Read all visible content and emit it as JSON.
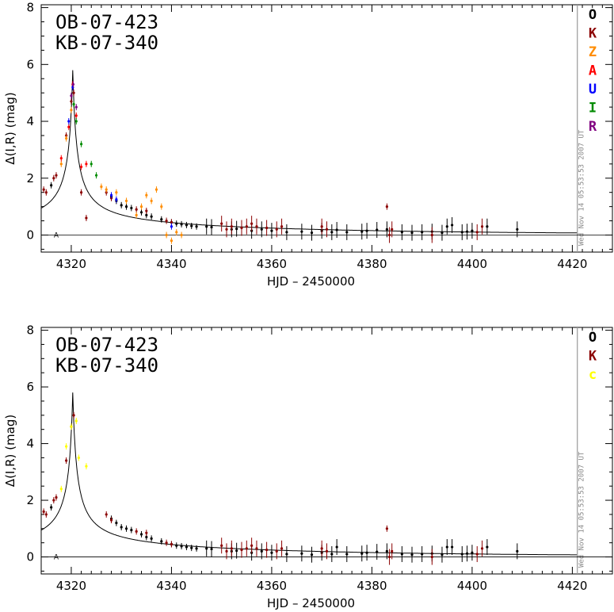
{
  "chart_data": [
    {
      "type": "scatter",
      "title_lines": [
        "OB-07-423",
        "KB-07-340"
      ],
      "xlabel": "HJD – 2450000",
      "ylabel": "Δ(I,R) (mag)",
      "xlim": [
        4314,
        4428
      ],
      "ylim": [
        -0.6,
        8.1
      ],
      "xticks": [
        4320,
        4340,
        4360,
        4380,
        4400,
        4420
      ],
      "yticks": [
        0,
        2,
        4,
        6,
        8
      ],
      "stamp": "Wed Nov 14 05:53:53 2007 UT",
      "marker_label": "A",
      "marker": {
        "x": 4317,
        "y": 0.0
      },
      "vline_x": 4421,
      "legend_position": "top-right",
      "legend": [
        {
          "label": "O",
          "color": "#000000"
        },
        {
          "label": "K",
          "color": "#8b0000"
        },
        {
          "label": "Z",
          "color": "#ff8c00"
        },
        {
          "label": "A",
          "color": "#ff0000"
        },
        {
          "label": "U",
          "color": "#0000ff"
        },
        {
          "label": "I",
          "color": "#008b00"
        },
        {
          "label": "R",
          "color": "#800080"
        }
      ],
      "model": {
        "t0": 4320.3,
        "peak": 5.45,
        "t_rise": 0.85,
        "baseline": 0.0
      },
      "series": [
        {
          "name": "O",
          "color": "#000000",
          "points": [
            [
              4316,
              1.75
            ],
            [
              4328,
              1.35
            ],
            [
              4329,
              1.2
            ],
            [
              4330,
              1.05
            ],
            [
              4331,
              1.0
            ],
            [
              4332,
              0.95
            ],
            [
              4334,
              0.8
            ],
            [
              4335,
              0.7
            ],
            [
              4336,
              0.65
            ],
            [
              4338,
              0.55
            ],
            [
              4340,
              0.45
            ],
            [
              4341,
              0.4
            ],
            [
              4342,
              0.38
            ],
            [
              4343,
              0.35
            ],
            [
              4344,
              0.32
            ],
            [
              4345,
              0.3
            ],
            [
              4347,
              0.3
            ],
            [
              4348,
              0.28
            ],
            [
              4352,
              0.2
            ],
            [
              4353,
              0.22
            ],
            [
              4356,
              0.15
            ],
            [
              4358,
              0.2
            ],
            [
              4360,
              0.15
            ],
            [
              4363,
              0.1
            ],
            [
              4366,
              0.12
            ],
            [
              4368,
              0.08
            ],
            [
              4370,
              0.15
            ],
            [
              4372,
              0.1
            ],
            [
              4373,
              0.18
            ],
            [
              4375,
              0.1
            ],
            [
              4378,
              0.12
            ],
            [
              4379,
              0.15
            ],
            [
              4381,
              0.18
            ],
            [
              4383,
              0.2
            ],
            [
              4386,
              0.1
            ],
            [
              4388,
              0.08
            ],
            [
              4390,
              0.1
            ],
            [
              4392,
              0.12
            ],
            [
              4394,
              0.08
            ],
            [
              4395,
              0.3
            ],
            [
              4396,
              0.35
            ],
            [
              4398,
              0.1
            ],
            [
              4399,
              0.12
            ],
            [
              4400,
              0.15
            ],
            [
              4403,
              0.3
            ],
            [
              4409,
              0.2
            ]
          ]
        },
        {
          "name": "K",
          "color": "#8b0000",
          "points": [
            [
              4314.5,
              1.6
            ],
            [
              4315,
              1.5
            ],
            [
              4316.5,
              2.0
            ],
            [
              4317,
              2.1
            ],
            [
              4319,
              3.5
            ],
            [
              4320,
              4.7
            ],
            [
              4320.5,
              5.0
            ],
            [
              4322,
              1.5
            ],
            [
              4323,
              0.6
            ],
            [
              4327,
              1.5
            ],
            [
              4328,
              1.3
            ],
            [
              4333,
              0.9
            ],
            [
              4335,
              0.85
            ],
            [
              4339,
              0.5
            ],
            [
              4340,
              0.45
            ],
            [
              4350,
              0.4
            ],
            [
              4351,
              0.2
            ],
            [
              4352,
              0.3
            ],
            [
              4354,
              0.25
            ],
            [
              4355,
              0.3
            ],
            [
              4356,
              0.4
            ],
            [
              4357,
              0.3
            ],
            [
              4359,
              0.25
            ],
            [
              4361,
              0.2
            ],
            [
              4362,
              0.3
            ],
            [
              4370,
              0.3
            ],
            [
              4371,
              0.2
            ],
            [
              4383,
              1.0
            ],
            [
              4383.5,
              0.0
            ],
            [
              4384,
              0.2
            ],
            [
              4392,
              0.0
            ],
            [
              4401,
              0.1
            ],
            [
              4402,
              0.3
            ]
          ]
        },
        {
          "name": "Z",
          "color": "#ff8c00",
          "points": [
            [
              4318,
              2.5
            ],
            [
              4319,
              3.4
            ],
            [
              4320,
              4.4
            ],
            [
              4326,
              1.7
            ],
            [
              4327,
              1.6
            ],
            [
              4329,
              1.5
            ],
            [
              4331,
              1.2
            ],
            [
              4333,
              0.7
            ],
            [
              4334,
              1.0
            ],
            [
              4335,
              1.4
            ],
            [
              4336,
              1.2
            ],
            [
              4337,
              1.6
            ],
            [
              4338,
              1.0
            ],
            [
              4339,
              0.0
            ],
            [
              4340,
              -0.2
            ],
            [
              4341,
              0.1
            ],
            [
              4342,
              0.0
            ]
          ]
        },
        {
          "name": "A",
          "color": "#ff0000",
          "points": [
            [
              4318,
              2.7
            ],
            [
              4319.5,
              3.8
            ],
            [
              4320.3,
              5.3
            ],
            [
              4321,
              4.2
            ],
            [
              4322,
              2.4
            ],
            [
              4323,
              2.5
            ]
          ]
        },
        {
          "name": "U",
          "color": "#0000ff",
          "points": [
            [
              4319.5,
              4.0
            ],
            [
              4320.3,
              5.2
            ],
            [
              4328,
              1.4
            ],
            [
              4329,
              1.25
            ],
            [
              4340,
              0.3
            ]
          ]
        },
        {
          "name": "I",
          "color": "#008b00",
          "points": [
            [
              4320.5,
              4.6
            ],
            [
              4321,
              4.0
            ],
            [
              4322,
              3.2
            ],
            [
              4324,
              2.5
            ],
            [
              4325,
              2.1
            ]
          ]
        },
        {
          "name": "R",
          "color": "#800080",
          "points": [
            [
              4320,
              4.9
            ],
            [
              4320.4,
              5.3
            ],
            [
              4321,
              4.5
            ]
          ]
        }
      ]
    },
    {
      "type": "scatter",
      "title_lines": [
        "OB-07-423",
        "KB-07-340"
      ],
      "xlabel": "HJD – 2450000",
      "ylabel": "Δ(I,R) (mag)",
      "xlim": [
        4314,
        4428
      ],
      "ylim": [
        -0.6,
        8.1
      ],
      "xticks": [
        4320,
        4340,
        4360,
        4380,
        4400,
        4420
      ],
      "yticks": [
        0,
        2,
        4,
        6,
        8
      ],
      "stamp": "Wed Nov 14 05:53:53 2007 UT",
      "marker_label": "A",
      "marker": {
        "x": 4317,
        "y": 0.0
      },
      "vline_x": 4421,
      "legend_position": "top-right",
      "legend": [
        {
          "label": "O",
          "color": "#000000"
        },
        {
          "label": "K",
          "color": "#8b0000"
        },
        {
          "label": "c",
          "color": "#ffff00"
        }
      ],
      "model": {
        "t0": 4320.3,
        "peak": 5.45,
        "t_rise": 0.85,
        "baseline": 0.0
      },
      "series": [
        {
          "name": "O",
          "color": "#000000",
          "points": [
            [
              4316,
              1.75
            ],
            [
              4328,
              1.35
            ],
            [
              4329,
              1.2
            ],
            [
              4330,
              1.05
            ],
            [
              4331,
              1.0
            ],
            [
              4332,
              0.95
            ],
            [
              4334,
              0.8
            ],
            [
              4335,
              0.7
            ],
            [
              4336,
              0.65
            ],
            [
              4338,
              0.55
            ],
            [
              4340,
              0.45
            ],
            [
              4341,
              0.4
            ],
            [
              4342,
              0.38
            ],
            [
              4343,
              0.35
            ],
            [
              4344,
              0.32
            ],
            [
              4345,
              0.3
            ],
            [
              4347,
              0.3
            ],
            [
              4348,
              0.28
            ],
            [
              4352,
              0.2
            ],
            [
              4353,
              0.22
            ],
            [
              4356,
              0.15
            ],
            [
              4358,
              0.2
            ],
            [
              4360,
              0.15
            ],
            [
              4363,
              0.1
            ],
            [
              4366,
              0.12
            ],
            [
              4368,
              0.08
            ],
            [
              4370,
              0.15
            ],
            [
              4372,
              0.1
            ],
            [
              4373,
              0.35
            ],
            [
              4375,
              0.1
            ],
            [
              4378,
              0.12
            ],
            [
              4379,
              0.15
            ],
            [
              4381,
              0.18
            ],
            [
              4383,
              0.2
            ],
            [
              4386,
              0.1
            ],
            [
              4388,
              0.08
            ],
            [
              4390,
              0.1
            ],
            [
              4392,
              0.12
            ],
            [
              4394,
              0.08
            ],
            [
              4395,
              0.35
            ],
            [
              4396,
              0.35
            ],
            [
              4398,
              0.1
            ],
            [
              4399,
              0.12
            ],
            [
              4400,
              0.15
            ],
            [
              4403,
              0.35
            ],
            [
              4409,
              0.2
            ]
          ]
        },
        {
          "name": "K",
          "color": "#8b0000",
          "points": [
            [
              4314.5,
              1.6
            ],
            [
              4315,
              1.5
            ],
            [
              4316.5,
              2.0
            ],
            [
              4317,
              2.1
            ],
            [
              4319,
              3.4
            ],
            [
              4320,
              4.6
            ],
            [
              4320.5,
              5.0
            ],
            [
              4327,
              1.5
            ],
            [
              4328,
              1.3
            ],
            [
              4333,
              0.9
            ],
            [
              4335,
              0.85
            ],
            [
              4339,
              0.5
            ],
            [
              4340,
              0.45
            ],
            [
              4350,
              0.4
            ],
            [
              4351,
              0.2
            ],
            [
              4352,
              0.3
            ],
            [
              4354,
              0.25
            ],
            [
              4355,
              0.3
            ],
            [
              4356,
              0.4
            ],
            [
              4357,
              0.3
            ],
            [
              4359,
              0.25
            ],
            [
              4361,
              0.2
            ],
            [
              4362,
              0.3
            ],
            [
              4370,
              0.3
            ],
            [
              4371,
              0.2
            ],
            [
              4383,
              1.0
            ],
            [
              4383.5,
              0.0
            ],
            [
              4384,
              0.2
            ],
            [
              4392,
              0.0
            ],
            [
              4401,
              0.1
            ],
            [
              4402,
              0.3
            ]
          ]
        },
        {
          "name": "c",
          "color": "#ffff00",
          "points": [
            [
              4318,
              2.4
            ],
            [
              4319,
              3.9
            ],
            [
              4320,
              4.6
            ],
            [
              4321,
              4.8
            ],
            [
              4321.5,
              3.5
            ],
            [
              4323,
              3.2
            ]
          ]
        }
      ]
    }
  ]
}
